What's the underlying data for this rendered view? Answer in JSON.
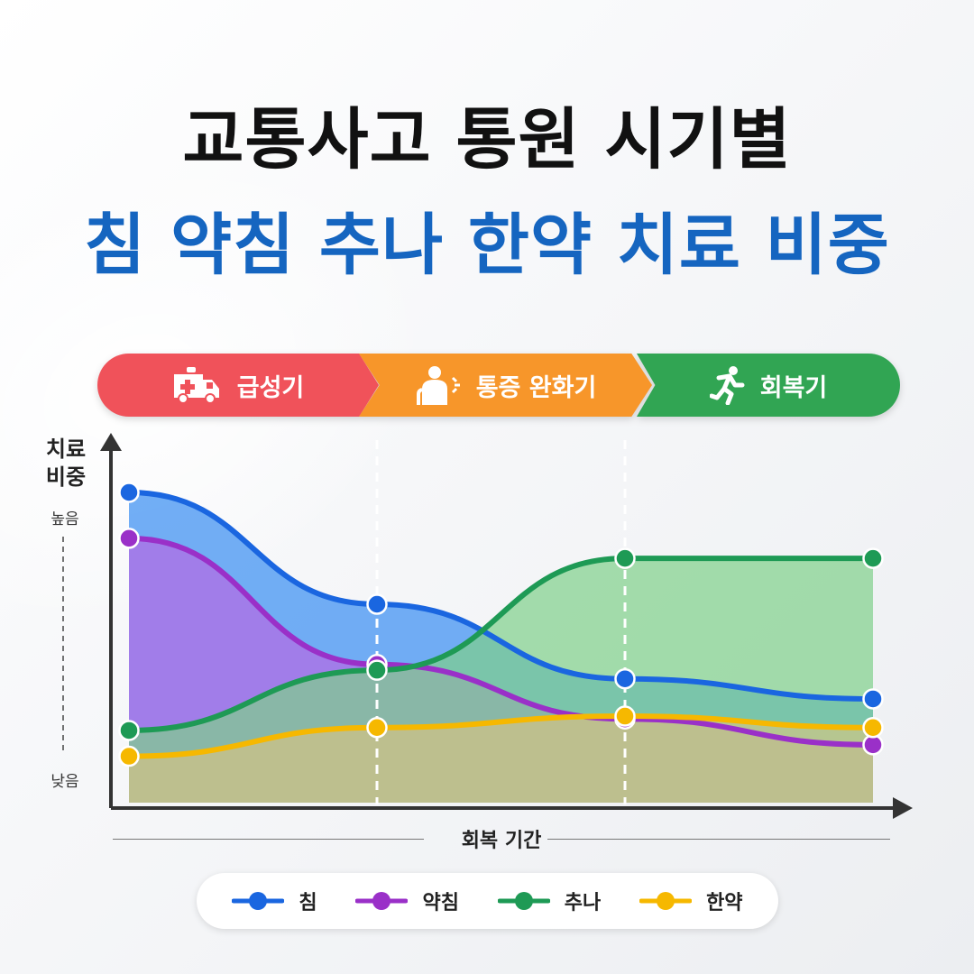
{
  "title": {
    "line1": "교통사고 통원 시기별",
    "line2": "침 약침 추나 한약 치료 비중"
  },
  "phases": [
    {
      "label": "급성기",
      "icon": "ambulance-icon",
      "color": "#f0525a"
    },
    {
      "label": "통증 완화기",
      "icon": "back-pain-icon",
      "color": "#f7962a"
    },
    {
      "label": "회복기",
      "icon": "running-person-icon",
      "color": "#31a553"
    }
  ],
  "chart_data": {
    "type": "area",
    "ylabel_line1": "치료",
    "ylabel_line2": "비중",
    "xlabel": "회복 기간",
    "y_tick_high": "높음",
    "y_tick_low": "낮음",
    "ylim": [
      0,
      100
    ],
    "x": [
      0,
      1,
      2,
      3
    ],
    "phase_boundaries_x": [
      1,
      2
    ],
    "series": [
      {
        "name": "침",
        "color": "#1a66e0",
        "fill": "#4f9af2",
        "values": [
          100,
          61,
          35,
          28
        ]
      },
      {
        "name": "약침",
        "color": "#9a30c8",
        "fill": "#b26ee6",
        "values": [
          84,
          40,
          21,
          12
        ]
      },
      {
        "name": "추나",
        "color": "#1e9a55",
        "fill": "#7fd08a",
        "values": [
          17,
          38,
          77,
          77
        ]
      },
      {
        "name": "한약",
        "color": "#f6b800",
        "fill": "#e8c77a",
        "values": [
          8,
          18,
          22,
          18
        ]
      }
    ],
    "legend_position": "bottom"
  }
}
